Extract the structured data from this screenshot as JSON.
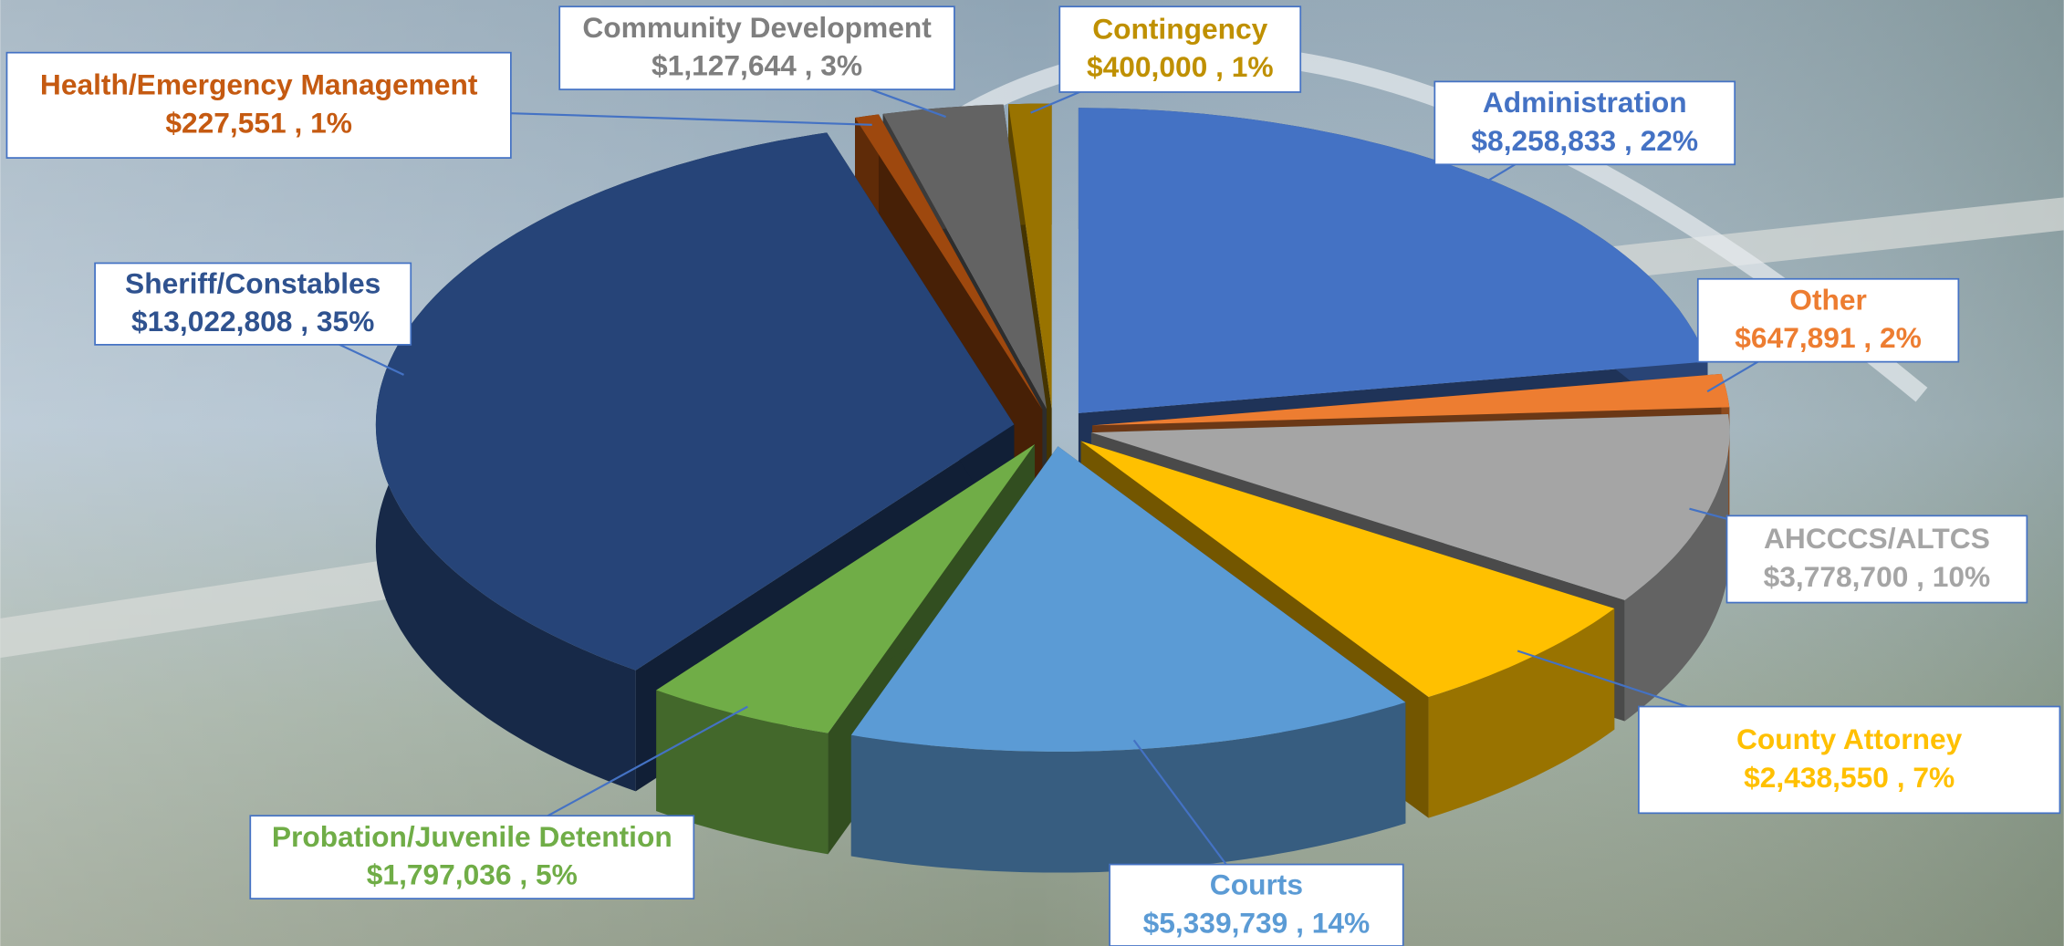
{
  "chart_data": {
    "type": "pie",
    "categories": [
      "Administration",
      "Other",
      "AHCCCS/ALTCS",
      "County Attorney",
      "Courts",
      "Probation/Juvenile Detention",
      "Sheriff/Constables",
      "Health/Emergency Management",
      "Community Development",
      "Contingency"
    ],
    "values": [
      8258833,
      647891,
      3778700,
      2438550,
      5339739,
      1797036,
      13022808,
      227551,
      1127644,
      400000
    ],
    "value_labels": [
      "$8,258,833 , 22%",
      "$647,891 , 2%",
      "$3,778,700 , 10%",
      "$2,438,550 , 7%",
      "$5,339,739 , 14%",
      "$1,797,036 , 5%",
      "$13,022,808 , 35%",
      "$227,551 , 1%",
      "$1,127,644 , 3%",
      "$400,000 , 1%"
    ],
    "colors": [
      "#4472c4",
      "#ed7d31",
      "#a5a5a5",
      "#ffc000",
      "#5b9bd5",
      "#70ad47",
      "#264478",
      "#9e480e",
      "#636363",
      "#997300"
    ]
  }
}
